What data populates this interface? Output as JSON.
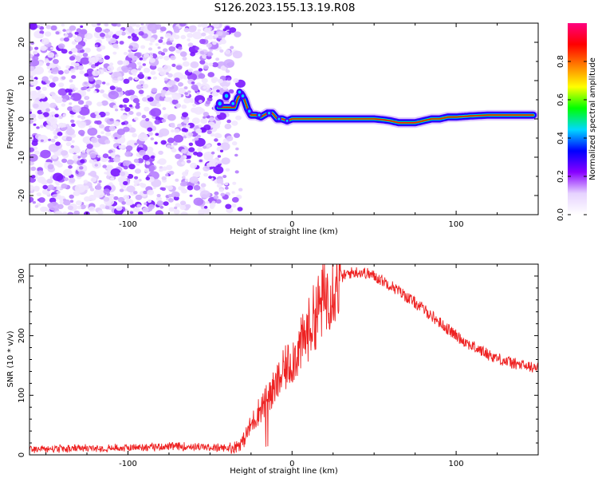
{
  "figure": {
    "title": "S126.2023.155.13.19.R08"
  },
  "chart_data": [
    {
      "type": "heatmap",
      "title": "S126.2023.155.13.19.R08",
      "xlabel": "Height of straight line (km)",
      "ylabel": "Frequency (Hz)",
      "xlim": [
        -160,
        150
      ],
      "ylim": [
        -25,
        25
      ],
      "x_ticks": [
        -100,
        0,
        100
      ],
      "y_ticks": [
        -20,
        -10,
        0,
        10,
        20
      ],
      "colorbar": {
        "label": "Normalized spectral amplitude",
        "range": [
          0,
          1
        ],
        "ticks": [
          "0.0",
          "0.2",
          "0.4",
          "0.6",
          "0.8"
        ],
        "colormap": [
          "#ffffff",
          "#e6d2ff",
          "#8800ff",
          "#0000ff",
          "#00d8ff",
          "#00ff00",
          "#ffff00",
          "#ff8000",
          "#ff0000",
          "#ff0080"
        ]
      },
      "noise_region_x": [
        -160,
        -38
      ],
      "signal_ridge": {
        "x": [
          -45,
          -40,
          -35,
          -33,
          -31,
          -29,
          -27,
          -25,
          -22,
          -19,
          -15,
          -12,
          -9,
          -6,
          -3,
          0,
          5,
          10,
          20,
          30,
          40,
          50,
          55,
          60,
          65,
          70,
          75,
          80,
          85,
          90,
          95,
          100,
          110,
          120,
          130,
          140,
          147
        ],
        "frequency_hz": [
          3,
          3,
          3,
          5.5,
          6.5,
          5,
          2.5,
          1,
          1,
          0.5,
          1.5,
          1.5,
          0,
          0,
          -0.5,
          0,
          0,
          0,
          0,
          0,
          0,
          0,
          -0.2,
          -0.5,
          -1,
          -1,
          -1,
          -0.5,
          0,
          0,
          0.5,
          0.5,
          0.8,
          1,
          1,
          1,
          1
        ]
      }
    },
    {
      "type": "line",
      "xlabel": "Height of straight line (km)",
      "ylabel": "SNR (10 * v/v)",
      "xlim": [
        -160,
        150
      ],
      "ylim": [
        0,
        320
      ],
      "x_ticks": [
        -100,
        0,
        100
      ],
      "y_ticks": [
        0,
        100,
        200,
        300
      ],
      "series": [
        {
          "color": "#ee2222",
          "x": [
            -160,
            -140,
            -120,
            -100,
            -80,
            -60,
            -50,
            -40,
            -35,
            -30,
            -25,
            -20,
            -15,
            -10,
            -5,
            0,
            5,
            10,
            15,
            20,
            25,
            30,
            35,
            40,
            45,
            50,
            60,
            70,
            80,
            90,
            100,
            110,
            120,
            130,
            140,
            150
          ],
          "values": [
            10,
            10,
            11,
            12,
            14,
            14,
            12,
            11,
            13,
            22,
            50,
            75,
            95,
            115,
            140,
            160,
            180,
            210,
            240,
            265,
            285,
            298,
            305,
            307,
            305,
            300,
            285,
            265,
            245,
            222,
            200,
            182,
            168,
            157,
            150,
            145
          ]
        }
      ]
    }
  ]
}
